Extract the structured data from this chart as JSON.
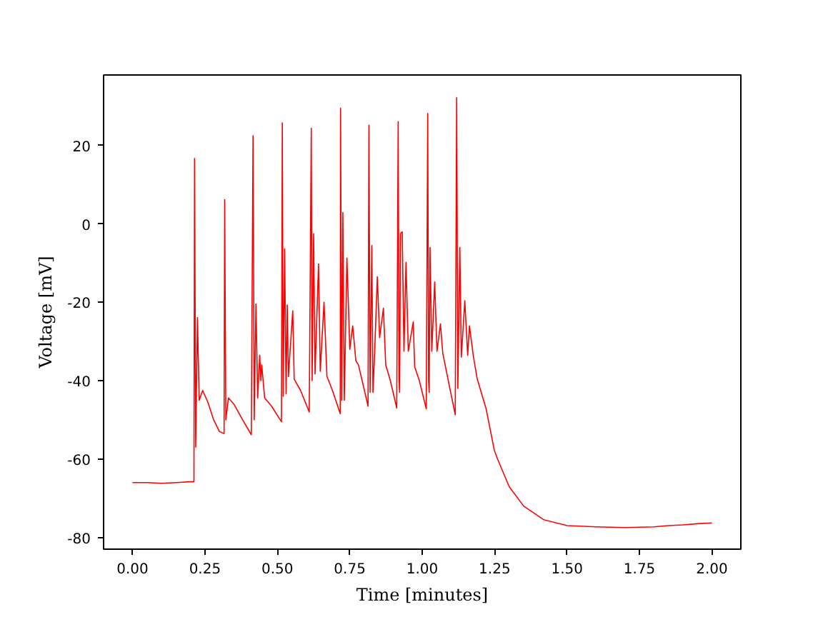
{
  "chart_data": {
    "type": "line",
    "xlabel": "Time [minutes]",
    "ylabel": "Voltage [mV]",
    "grid": false,
    "marker": "none",
    "line_style": "solid",
    "xlim": [
      -0.1,
      2.1
    ],
    "ylim": [
      -83,
      38
    ],
    "xticks": [
      {
        "value": 0,
        "label": "0.00"
      },
      {
        "value": 0.25,
        "label": "0.25"
      },
      {
        "value": 0.5,
        "label": "0.50"
      },
      {
        "value": 0.75,
        "label": "0.75"
      },
      {
        "value": 1,
        "label": "1.00"
      },
      {
        "value": 1.25,
        "label": "1.25"
      },
      {
        "value": 1.5,
        "label": "1.50"
      },
      {
        "value": 1.75,
        "label": "1.75"
      },
      {
        "value": 2,
        "label": "2.00"
      }
    ],
    "yticks": [
      -80,
      -60,
      -40,
      -20,
      0,
      20
    ],
    "series": [
      {
        "color": "#ff0000",
        "x": [
          0,
          0.05,
          0.1,
          0.15,
          0.2,
          0.212,
          0.214,
          0.218,
          0.224,
          0.23,
          0.242,
          0.26,
          0.28,
          0.3,
          0.316,
          0.318,
          0.322,
          0.331,
          0.35,
          0.38,
          0.41,
          0.416,
          0.42,
          0.426,
          0.432,
          0.439,
          0.443,
          0.446,
          0.456,
          0.48,
          0.514,
          0.517,
          0.52,
          0.525,
          0.53,
          0.534,
          0.538,
          0.553,
          0.558,
          0.58,
          0.61,
          0.617,
          0.62,
          0.625,
          0.63,
          0.642,
          0.648,
          0.661,
          0.671,
          0.69,
          0.717,
          0.718,
          0.722,
          0.726,
          0.731,
          0.74,
          0.75,
          0.76,
          0.771,
          0.78,
          0.813,
          0.816,
          0.82,
          0.826,
          0.83,
          0.836,
          0.845,
          0.853,
          0.866,
          0.874,
          0.89,
          0.912,
          0.917,
          0.92,
          0.922,
          0.925,
          0.931,
          0.937,
          0.944,
          0.952,
          0.969,
          0.974,
          0.99,
          1.014,
          1.019,
          1.022,
          1.024,
          1.027,
          1.033,
          1.043,
          1.051,
          1.063,
          1.071,
          1.09,
          1.114,
          1.119,
          1.123,
          1.13,
          1.135,
          1.147,
          1.157,
          1.163,
          1.177,
          1.19,
          1.22,
          1.249,
          1.26,
          1.3,
          1.35,
          1.42,
          1.5,
          1.6,
          1.7,
          1.8,
          1.85,
          1.9,
          1.95,
          2.0
        ],
        "values": [
          -66,
          -66,
          -66.2,
          -66,
          -65.8,
          -65.8,
          16.7,
          -57,
          -23.9,
          -45,
          -42.5,
          -45.5,
          -50,
          -53,
          -53.5,
          6.2,
          -50,
          -44.4,
          -46,
          -50,
          -53.8,
          22.5,
          -50,
          -20.4,
          -44.4,
          -33.5,
          -40,
          -36,
          -44.4,
          -46.5,
          -50.5,
          25.8,
          -44,
          -6.4,
          -43.3,
          -20.7,
          -39,
          -22.2,
          -39.6,
          -42.5,
          -48,
          24.4,
          -40,
          -2.5,
          -38.3,
          -10.2,
          -37.6,
          -20,
          -38.9,
          -42.5,
          -48.4,
          29.5,
          -45,
          2.9,
          -45,
          -8.7,
          -32,
          -26,
          -35,
          -36,
          -46.5,
          25.2,
          -43,
          -5.5,
          -43,
          -32.5,
          -13.5,
          -29,
          -21.5,
          -36,
          -40,
          -47,
          26.1,
          -40,
          -43,
          -2.5,
          -2,
          -32.5,
          -9.8,
          -32.5,
          -25,
          -36.5,
          -40,
          -47.2,
          28.2,
          -40,
          -43,
          -6,
          -32.5,
          -14.8,
          -32.5,
          -25.5,
          -33,
          -40,
          -48.7,
          32.2,
          -42,
          -6,
          -34,
          -19.6,
          -33.5,
          -26,
          -34,
          -39.6,
          -47,
          -57.8,
          -60,
          -67,
          -72,
          -75.5,
          -77,
          -77.3,
          -77.5,
          -77.3,
          -77,
          -76.8,
          -76.5,
          -76.3
        ]
      }
    ]
  }
}
